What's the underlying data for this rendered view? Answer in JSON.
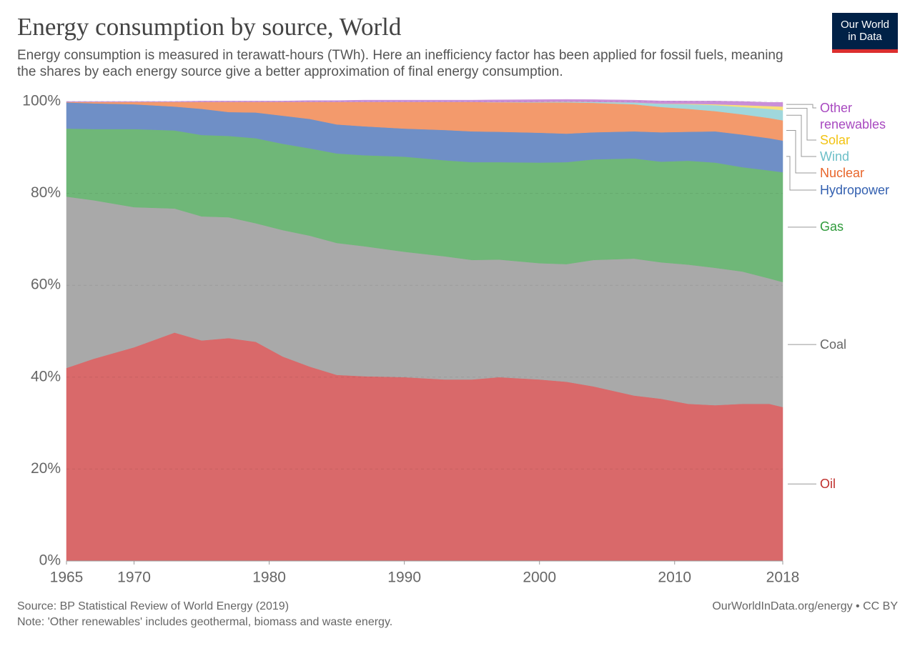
{
  "chart_data": {
    "type": "stacked_area",
    "title": "Energy consumption by source, World",
    "subtitle": "Energy consumption is measured in terawatt-hours (TWh). Here an inefficiency factor has been applied for fossil fuels, meaning the shares by each energy source give a better approximation of final energy consumption.",
    "logo": [
      "Our World",
      "in Data"
    ],
    "source": "Source: BP Statistical Review of World Energy (2019)",
    "note": "Note: 'Other renewables' includes geothermal, biomass and waste energy.",
    "url": "OurWorldInData.org/energy • CC BY",
    "x": [
      1965,
      1967,
      1970,
      1973,
      1975,
      1977,
      1979,
      1981,
      1983,
      1985,
      1987,
      1990,
      1993,
      1995,
      1997,
      2000,
      2002,
      2004,
      2007,
      2009,
      2011,
      2013,
      2015,
      2017,
      2018
    ],
    "xlim": [
      1965,
      2018
    ],
    "xticks": [
      1965,
      1970,
      1980,
      1990,
      2000,
      2010,
      2018
    ],
    "ylim": [
      0,
      100
    ],
    "yticks": [
      {
        "value": 0,
        "label": "0%"
      },
      {
        "value": 20,
        "label": "20%"
      },
      {
        "value": 40,
        "label": "40%"
      },
      {
        "value": 60,
        "label": "60%"
      },
      {
        "value": 80,
        "label": "80%"
      },
      {
        "value": 100,
        "label": "100%"
      }
    ],
    "grid": true,
    "series": [
      {
        "name": "Oil",
        "color": "#d9696a",
        "label_color": "#c0302d",
        "values": [
          42,
          44,
          46.5,
          49.7,
          48,
          48.5,
          47.7,
          44.5,
          42.3,
          40.5,
          40.2,
          40,
          39.5,
          39.5,
          40,
          39.5,
          39,
          38,
          36,
          35.3,
          34.2,
          33.9,
          34.2,
          34.2,
          33.5
        ]
      },
      {
        "name": "Coal",
        "color": "#a9a9a9",
        "label_color": "#666666",
        "values": [
          37.3,
          34.5,
          30.5,
          27,
          27,
          26.3,
          25.8,
          27.5,
          28.5,
          28.7,
          28.3,
          27.3,
          26.8,
          26,
          25.6,
          25.3,
          25.6,
          27.5,
          29.8,
          29.7,
          30.3,
          29.9,
          28.8,
          27.3,
          27.2
        ]
      },
      {
        "name": "Gas",
        "color": "#6fb778",
        "label_color": "#2e9a3a",
        "values": [
          14.8,
          15.5,
          17,
          17,
          17.7,
          17.7,
          18.5,
          18.8,
          19,
          19.5,
          19.8,
          20.7,
          20.9,
          21.3,
          21.2,
          21.9,
          22.2,
          21.9,
          21.8,
          21.9,
          22.6,
          22.9,
          22.7,
          23.5,
          23.9
        ]
      },
      {
        "name": "Hydropower",
        "color": "#6f8fc6",
        "label_color": "#3360b0",
        "values": [
          5.7,
          5.6,
          5.4,
          5.2,
          5.7,
          5.2,
          5.6,
          6.1,
          6.4,
          6.3,
          6.3,
          6.1,
          6.6,
          6.7,
          6.6,
          6.5,
          6.2,
          5.9,
          5.9,
          6.4,
          6.3,
          6.8,
          7.1,
          7,
          6.9
        ]
      },
      {
        "name": "Nuclear",
        "color": "#f39a6c",
        "label_color": "#e8652a",
        "values": [
          0.1,
          0.3,
          0.5,
          1,
          1.5,
          2.2,
          2.3,
          3,
          3.7,
          4.9,
          5.3,
          5.8,
          6.1,
          6.4,
          6.4,
          6.6,
          6.8,
          6.4,
          5.9,
          5.5,
          5,
          4.4,
          4.4,
          4.4,
          4.4
        ]
      },
      {
        "name": "Wind",
        "color": "#a0d7dc",
        "label_color": "#6cbfc8",
        "values": [
          0,
          0,
          0,
          0,
          0,
          0,
          0,
          0,
          0,
          0,
          0,
          0,
          0,
          0,
          0.05,
          0.1,
          0.15,
          0.2,
          0.4,
          0.7,
          1,
          1.3,
          1.6,
          2,
          2.2
        ]
      },
      {
        "name": "Solar",
        "color": "#f8e07a",
        "label_color": "#f2c313",
        "values": [
          0,
          0,
          0,
          0,
          0,
          0,
          0,
          0,
          0,
          0,
          0,
          0,
          0,
          0,
          0,
          0,
          0,
          0,
          0,
          0.03,
          0.1,
          0.2,
          0.4,
          0.6,
          0.8
        ]
      },
      {
        "name": "Other renewables",
        "color": "#c98fd8",
        "label_color": "#a849c0",
        "values": [
          0.1,
          0.1,
          0.1,
          0.1,
          0.2,
          0.2,
          0.2,
          0.2,
          0.3,
          0.3,
          0.4,
          0.4,
          0.4,
          0.4,
          0.5,
          0.5,
          0.5,
          0.5,
          0.5,
          0.6,
          0.6,
          0.7,
          0.8,
          0.8,
          0.9
        ]
      }
    ]
  }
}
